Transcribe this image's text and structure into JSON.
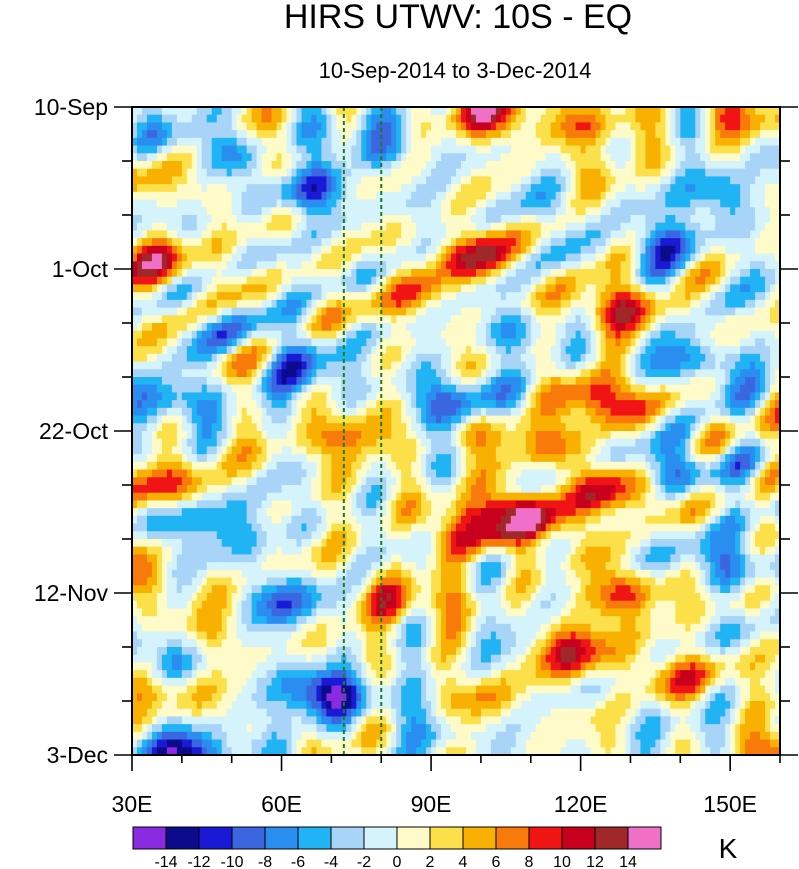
{
  "chart_data": {
    "type": "heatmap",
    "title": "HIRS UTWV: 10S - EQ",
    "subtitle": "10-Sep-2014 to 3-Dec-2014",
    "x_axis": {
      "range": [
        30,
        160
      ],
      "ticks": [
        30,
        60,
        90,
        120,
        150
      ],
      "tick_labels": [
        "30E",
        "60E",
        "90E",
        "120E",
        "150E"
      ],
      "minor_step": 10
    },
    "y_axis": {
      "range_days": [
        0,
        84
      ],
      "ticks_days": [
        0,
        21,
        42,
        63,
        84
      ],
      "tick_labels": [
        "10-Sep",
        "1-Oct",
        "22-Oct",
        "12-Nov",
        "3-Dec"
      ],
      "minor_step_days": 7,
      "direction": "time increases downward"
    },
    "reference_lines_lon": [
      72.5,
      80
    ],
    "colorbar": {
      "unit": "K",
      "levels": [
        -14,
        -12,
        -10,
        -8,
        -6,
        -4,
        -2,
        0,
        2,
        4,
        6,
        8,
        10,
        12,
        14
      ],
      "level_labels": [
        "-14",
        "-12",
        "-10",
        "-8",
        "-6",
        "-4",
        "-2",
        "0",
        "2",
        "4",
        "6",
        "8",
        "10",
        "12",
        "14"
      ],
      "colors": [
        "#8a2be2",
        "#0b0b8c",
        "#1a1ad6",
        "#3a66e0",
        "#2a8ef0",
        "#20b4f5",
        "#a8d4f8",
        "#d4f3fb",
        "#fffbc8",
        "#fbe04a",
        "#f8b100",
        "#f87a0a",
        "#f01414",
        "#c8001e",
        "#a02828",
        "#f070c8"
      ]
    },
    "features": [
      {
        "lon": 103,
        "day": 1,
        "value": 10
      },
      {
        "lon": 124,
        "day": 2,
        "value": 6
      },
      {
        "lon": 155,
        "day": 1,
        "value": 6
      },
      {
        "lon": 65,
        "day": 11,
        "value": -8
      },
      {
        "lon": 33,
        "day": 9,
        "value": 4
      },
      {
        "lon": 100,
        "day": 19,
        "value": 9
      },
      {
        "lon": 128,
        "day": 26,
        "value": 9
      },
      {
        "lon": 34,
        "day": 20,
        "value": 9
      },
      {
        "lon": 120,
        "day": 10,
        "value": 5
      },
      {
        "lon": 74,
        "day": 43,
        "value": 8
      },
      {
        "lon": 88,
        "day": 25,
        "value": 6
      },
      {
        "lon": 125,
        "day": 38,
        "value": 10
      },
      {
        "lon": 110,
        "day": 43,
        "value": 7
      },
      {
        "lon": 36,
        "day": 49,
        "value": 9
      },
      {
        "lon": 108,
        "day": 53,
        "value": 15
      },
      {
        "lon": 127,
        "day": 50,
        "value": 10
      },
      {
        "lon": 97,
        "day": 55,
        "value": 8
      },
      {
        "lon": 128,
        "day": 63,
        "value": 9
      },
      {
        "lon": 120,
        "day": 71,
        "value": 9
      },
      {
        "lon": 140,
        "day": 74,
        "value": 6
      },
      {
        "lon": 84,
        "day": 64,
        "value": 8
      },
      {
        "lon": 43,
        "day": 69,
        "value": 6
      },
      {
        "lon": 31,
        "day": 75,
        "value": 9
      },
      {
        "lon": 158,
        "day": 83,
        "value": 9
      },
      {
        "lon": 100,
        "day": 78,
        "value": 5
      },
      {
        "lon": 33,
        "day": 61,
        "value": 5
      },
      {
        "lon": 68,
        "day": 76,
        "value": -13
      },
      {
        "lon": 40,
        "day": 84,
        "value": -13
      },
      {
        "lon": 35,
        "day": 71,
        "value": -10
      },
      {
        "lon": 46,
        "day": 54,
        "value": -9
      },
      {
        "lon": 60,
        "day": 64,
        "value": -7
      },
      {
        "lon": 36,
        "day": 38,
        "value": -8
      },
      {
        "lon": 67,
        "day": 35,
        "value": -6
      },
      {
        "lon": 95,
        "day": 38,
        "value": -8
      },
      {
        "lon": 105,
        "day": 29,
        "value": -5
      },
      {
        "lon": 145,
        "day": 33,
        "value": -8
      },
      {
        "lon": 140,
        "day": 47,
        "value": -8
      },
      {
        "lon": 138,
        "day": 18,
        "value": -8
      },
      {
        "lon": 78,
        "day": 5,
        "value": -7
      },
      {
        "lon": 42,
        "day": 4,
        "value": -6
      },
      {
        "lon": 147,
        "day": 11,
        "value": -6
      },
      {
        "lon": 148,
        "day": 59,
        "value": -7
      },
      {
        "lon": 90,
        "day": 80,
        "value": -5
      },
      {
        "lon": 115,
        "day": 12,
        "value": -6
      },
      {
        "lon": 55,
        "day": 30,
        "value": -5
      },
      {
        "lon": 142,
        "day": 81,
        "value": -4
      }
    ]
  }
}
